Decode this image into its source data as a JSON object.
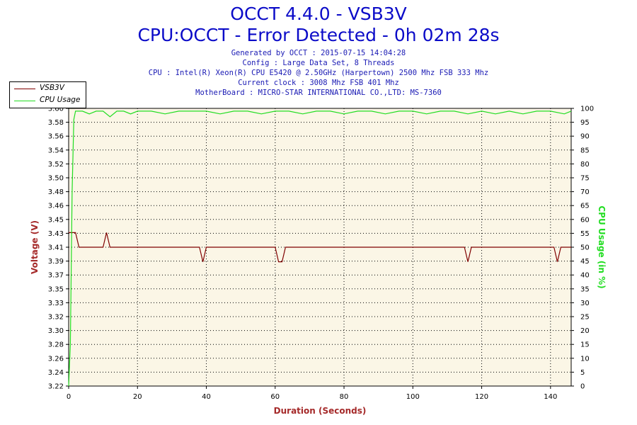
{
  "header": {
    "title": "OCCT 4.4.0 - VSB3V",
    "subtitle": "CPU:OCCT - Error Detected - 0h 02m 28s",
    "info_lines": [
      "Generated by OCCT : 2015-07-15 14:04:28",
      "Config : Large Data Set, 8 Threads",
      "CPU : Intel(R) Xeon(R) CPU E5420 @ 2.50GHz (Harpertown) 2500 Mhz FSB 333 Mhz",
      "Current clock : 3008 Mhz FSB 401 Mhz",
      "MotherBoard : MICRO-STAR INTERNATIONAL CO.,LTD: MS-7360"
    ]
  },
  "legend": {
    "items": [
      {
        "label": "VSB3V",
        "color": "#800000"
      },
      {
        "label": "CPU Usage",
        "color": "#22dd22"
      }
    ]
  },
  "chart_data": {
    "type": "line",
    "xlabel": "Duration (Seconds)",
    "ylabel_left": "Voltage (V)",
    "ylabel_right": "CPU Usage (in %)",
    "xlim": [
      0,
      146
    ],
    "ylim_left": [
      3.22,
      3.6
    ],
    "ylim_right": [
      0,
      100
    ],
    "x_ticks": [
      0,
      20,
      40,
      60,
      80,
      100,
      120,
      140
    ],
    "y_left_ticks": [
      "3.22",
      "3.24",
      "3.26",
      "3.28",
      "3.30",
      "3.32",
      "3.33",
      "3.35",
      "3.37",
      "3.39",
      "3.41",
      "3.43",
      "3.45",
      "3.46",
      "3.48",
      "3.50",
      "3.52",
      "3.54",
      "3.56",
      "3.58",
      "3.60"
    ],
    "y_right_ticks": [
      0,
      5,
      10,
      15,
      20,
      25,
      30,
      35,
      40,
      45,
      50,
      55,
      60,
      65,
      70,
      75,
      80,
      85,
      90,
      95,
      100
    ],
    "grid": true,
    "legend_position": "top-left",
    "background_color": "#fbf6e6",
    "series": [
      {
        "name": "VSB3V",
        "axis": "left",
        "color": "#800000",
        "x": [
          0,
          1,
          2,
          3,
          10,
          11,
          12,
          13,
          38,
          39,
          40,
          60,
          61,
          62,
          63,
          64,
          115,
          116,
          117,
          141,
          142,
          143,
          146
        ],
        "y": [
          3.43,
          3.43,
          3.43,
          3.41,
          3.41,
          3.43,
          3.41,
          3.41,
          3.41,
          3.39,
          3.41,
          3.41,
          3.39,
          3.39,
          3.41,
          3.41,
          3.41,
          3.39,
          3.41,
          3.41,
          3.39,
          3.41,
          3.41
        ]
      },
      {
        "name": "CPU Usage",
        "axis": "right",
        "color": "#22dd22",
        "x": [
          0,
          0.5,
          1,
          1.5,
          2,
          4,
          6,
          8,
          10,
          12,
          14,
          16,
          18,
          20,
          24,
          28,
          32,
          36,
          40,
          44,
          48,
          52,
          56,
          60,
          64,
          68,
          72,
          76,
          80,
          84,
          88,
          92,
          96,
          100,
          104,
          108,
          112,
          116,
          120,
          124,
          128,
          132,
          136,
          140,
          144,
          146
        ],
        "y": [
          0,
          15,
          70,
          96,
          99,
          99,
          98,
          99,
          99,
          97,
          99,
          99,
          98,
          99,
          99,
          98,
          99,
          99,
          99,
          98,
          99,
          99,
          98,
          99,
          99,
          98,
          99,
          99,
          98,
          99,
          99,
          98,
          99,
          99,
          98,
          99,
          99,
          98,
          99,
          98,
          99,
          98,
          99,
          99,
          98,
          99
        ]
      }
    ]
  }
}
